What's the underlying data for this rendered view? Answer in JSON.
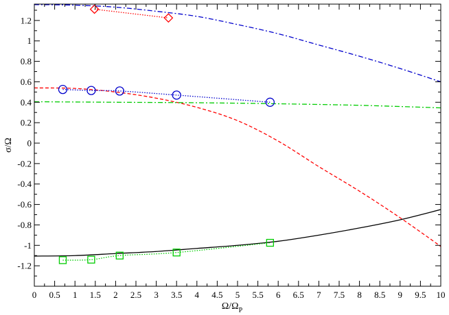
{
  "chart_data": {
    "type": "line",
    "xlabel": "Ω/Ω",
    "xlabel_sub": "P",
    "ylabel": "σ/Ω",
    "xlim": [
      0,
      10
    ],
    "ylim": [
      -1.4,
      1.36
    ],
    "grid": false,
    "legend": "none",
    "x_ticks_major": [
      0,
      0.5,
      1,
      1.5,
      2,
      2.5,
      3,
      3.5,
      4,
      4.5,
      5,
      5.5,
      6,
      6.5,
      7,
      7.5,
      8,
      8.5,
      9,
      9.5,
      10
    ],
    "x_tick_labels": [
      "0",
      "0.5",
      "1",
      "1.5",
      "2",
      "2.5",
      "3",
      "3.5",
      "4",
      "4.5",
      "5",
      "5.5",
      "6",
      "6.5",
      "7",
      "7.5",
      "8",
      "8.5",
      "9",
      "9.5",
      "10"
    ],
    "y_ticks_major": [
      -1.2,
      -1,
      -0.8,
      -0.6,
      -0.4,
      -0.2,
      0,
      0.2,
      0.4,
      0.6,
      0.8,
      1,
      1.2
    ],
    "y_tick_labels": [
      "-1.2",
      "-1",
      "-0.8",
      "-0.6",
      "-0.4",
      "-0.2",
      "0",
      "0.2",
      "0.4",
      "0.6",
      "0.8",
      "1",
      "1.2"
    ],
    "series": [
      {
        "style": "dash-dot",
        "color": "#0000cc",
        "x": [
          0,
          1,
          2,
          3,
          4,
          5,
          6,
          7,
          8,
          9,
          10
        ],
        "y": [
          1.355,
          1.35,
          1.33,
          1.29,
          1.24,
          1.16,
          1.07,
          0.96,
          0.85,
          0.73,
          0.6
        ]
      },
      {
        "style": "dashed",
        "color": "#ff0000",
        "x": [
          0,
          1,
          2,
          3,
          4,
          5,
          6,
          7,
          8,
          9,
          10
        ],
        "y": [
          0.54,
          0.535,
          0.5,
          0.44,
          0.35,
          0.22,
          0.02,
          -0.23,
          -0.47,
          -0.73,
          -1.01
        ]
      },
      {
        "style": "dash-dot",
        "color": "#00cc00",
        "x": [
          0,
          2,
          4,
          6,
          8,
          10
        ],
        "y": [
          0.405,
          0.4,
          0.395,
          0.385,
          0.37,
          0.345
        ]
      },
      {
        "style": "solid",
        "color": "#000000",
        "x": [
          0,
          1,
          2,
          3,
          4,
          5,
          6,
          7,
          8,
          9,
          10
        ],
        "y": [
          -1.105,
          -1.1,
          -1.08,
          -1.06,
          -1.03,
          -1.0,
          -0.96,
          -0.9,
          -0.83,
          -0.75,
          -0.65
        ]
      },
      {
        "style": "dotted",
        "color": "#ff0000",
        "marker": "diamond",
        "x": [
          1.48,
          3.3
        ],
        "y": [
          1.31,
          1.225
        ]
      },
      {
        "style": "dotted",
        "color": "#0000cc",
        "marker": "circle",
        "x": [
          0.7,
          1.4,
          2.1,
          3.5,
          5.8
        ],
        "y": [
          0.525,
          0.515,
          0.51,
          0.47,
          0.4
        ]
      },
      {
        "style": "dotted",
        "color": "#00cc00",
        "marker": "square",
        "x": [
          0.7,
          1.4,
          2.1,
          3.5,
          5.8
        ],
        "y": [
          -1.145,
          -1.14,
          -1.1,
          -1.07,
          -0.975
        ]
      }
    ]
  }
}
